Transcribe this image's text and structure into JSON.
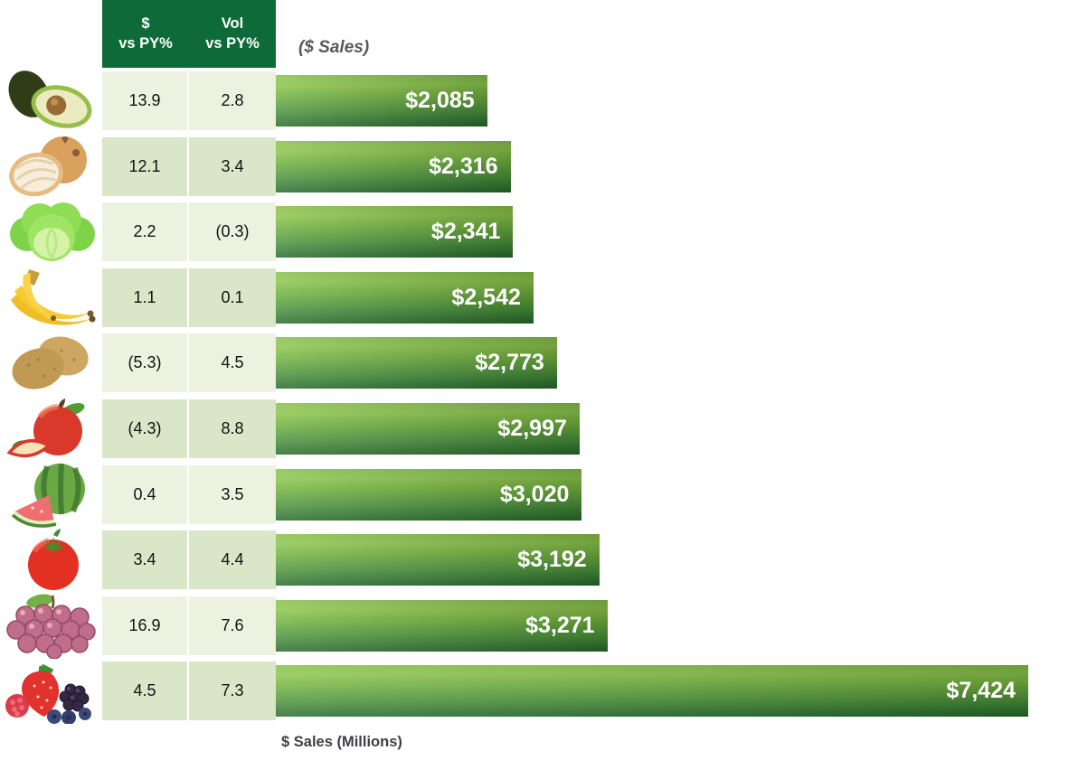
{
  "title": "($ Sales)",
  "axis_label": "$ Sales (Millions)",
  "header": {
    "dollar_col": {
      "line1": "$",
      "line2": "vs PY%"
    },
    "vol_col": {
      "line1": "Vol",
      "line2": "vs PY%"
    }
  },
  "colors": {
    "header_bg": "#0E6B39",
    "row_light": "#ECF2DF",
    "row_dark": "#D9E6C7",
    "bar_gradient_top": "#8CC54B",
    "bar_gradient_bottom": "#256829",
    "bar_label": "#FFFFFF",
    "title_gray": "#595959",
    "axis_label_gray": "#3F3F46"
  },
  "rows": [
    {
      "item": "Avocados",
      "icon": "avocado-icon",
      "dollar_vs_py": "13.9",
      "vol_vs_py": "2.8",
      "sales_label": "$2,085"
    },
    {
      "item": "Onions",
      "icon": "onion-icon",
      "dollar_vs_py": "12.1",
      "vol_vs_py": "3.4",
      "sales_label": "$2,316"
    },
    {
      "item": "Lettuce",
      "icon": "lettuce-icon",
      "dollar_vs_py": "2.2",
      "vol_vs_py": "(0.3)",
      "sales_label": "$2,341"
    },
    {
      "item": "Bananas",
      "icon": "bananas-icon",
      "dollar_vs_py": "1.1",
      "vol_vs_py": "0.1",
      "sales_label": "$2,542"
    },
    {
      "item": "Potatoes",
      "icon": "potatoes-icon",
      "dollar_vs_py": "(5.3)",
      "vol_vs_py": "4.5",
      "sales_label": "$2,773"
    },
    {
      "item": "Apples",
      "icon": "apple-icon",
      "dollar_vs_py": "(4.3)",
      "vol_vs_py": "8.8",
      "sales_label": "$2,997"
    },
    {
      "item": "Watermelon",
      "icon": "watermelon-icon",
      "dollar_vs_py": "0.4",
      "vol_vs_py": "3.5",
      "sales_label": "$3,020"
    },
    {
      "item": "Tomatoes",
      "icon": "tomato-icon",
      "dollar_vs_py": "3.4",
      "vol_vs_py": "4.4",
      "sales_label": "$3,192"
    },
    {
      "item": "Grapes",
      "icon": "grapes-icon",
      "dollar_vs_py": "16.9",
      "vol_vs_py": "7.6",
      "sales_label": "$3,271"
    },
    {
      "item": "Berries",
      "icon": "berries-icon",
      "dollar_vs_py": "4.5",
      "vol_vs_py": "7.3",
      "sales_label": "$7,424"
    }
  ],
  "chart_data": {
    "type": "bar",
    "orientation": "horizontal",
    "title": "($ Sales)",
    "xlabel": "$ Sales (Millions)",
    "categories": [
      "Avocados",
      "Onions",
      "Lettuce",
      "Bananas",
      "Potatoes",
      "Apples",
      "Watermelon",
      "Tomatoes",
      "Grapes",
      "Berries"
    ],
    "series": [
      {
        "name": "$ Sales (Millions)",
        "values": [
          2085,
          2316,
          2341,
          2542,
          2773,
          2997,
          3020,
          3192,
          3271,
          7424
        ]
      },
      {
        "name": "$ vs PY%",
        "values": [
          13.9,
          12.1,
          2.2,
          1.1,
          -5.3,
          -4.3,
          0.4,
          3.4,
          16.9,
          4.5
        ]
      },
      {
        "name": "Vol vs PY%",
        "values": [
          2.8,
          3.4,
          -0.3,
          0.1,
          4.5,
          8.8,
          3.5,
          4.4,
          7.6,
          7.3
        ]
      }
    ],
    "xlim": [
      0,
      7424
    ],
    "data_labels": true,
    "legend": false,
    "grid": false
  }
}
